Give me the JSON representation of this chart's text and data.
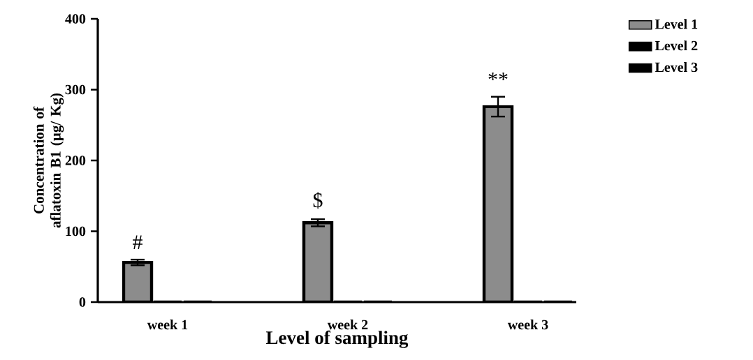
{
  "chart_data": {
    "type": "bar",
    "xlabel": "Level of sampling",
    "ylabel": "Concentration of aflatoxin B1 (µg/ Kg)",
    "categories": [
      "week 1",
      "week 2",
      "week 3"
    ],
    "series": [
      {
        "name": "Level 1",
        "color": "#8c8c8c",
        "values": [
          56,
          112,
          276
        ],
        "errors": [
          4,
          5,
          14
        ]
      },
      {
        "name": "Level 2",
        "color": "#000000",
        "values": [
          0,
          0,
          0
        ]
      },
      {
        "name": "Level 3",
        "color": "#000000",
        "values": [
          0,
          0,
          0
        ]
      }
    ],
    "ylim": [
      0,
      400
    ],
    "yticks": [
      0,
      100,
      200,
      300,
      400
    ],
    "legend": "top right",
    "annotations": [
      "#",
      "$",
      "**"
    ]
  }
}
